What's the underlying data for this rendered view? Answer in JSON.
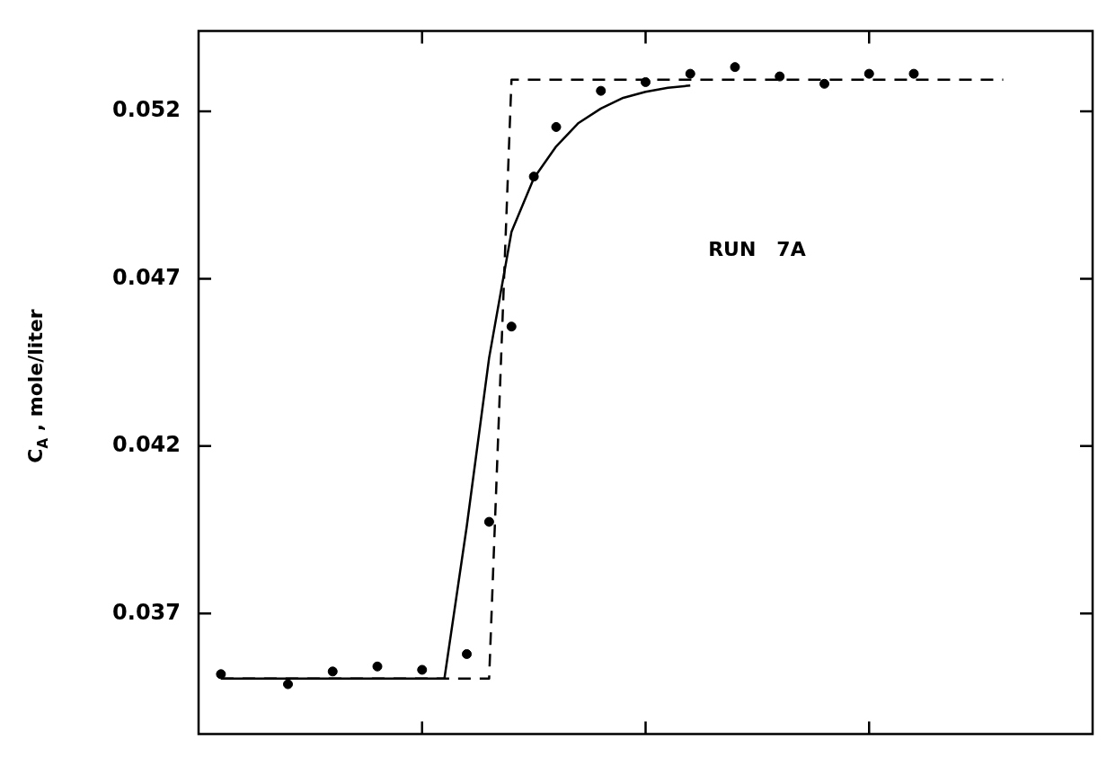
{
  "chart_data": {
    "type": "scatter",
    "ylabel": "C$_{A}$ ,  mole/liter",
    "annotations": [
      "RUN   7A"
    ],
    "categories": [
      null,
      null,
      null,
      null,
      null,
      null,
      null,
      null,
      null,
      null,
      null,
      null,
      null,
      null,
      null,
      null,
      null,
      null,
      null,
      null,
      null,
      null,
      null,
      null,
      null,
      null,
      null,
      null,
      null,
      null,
      null,
      null,
      null,
      null,
      null,
      null,
      null,
      null,
      null,
      null,
      null
    ],
    "ylim": [
      0.0334,
      0.0544
    ],
    "yticks": [
      0.037,
      0.042,
      0.047,
      0.052
    ],
    "tick_labels": "y",
    "grid": false,
    "legend": false,
    "marker": "circle",
    "series": [
      {
        "color": "#000000",
        "values": [
          null,
          0.03519,
          null,
          null,
          0.03489,
          null,
          0.03527,
          null,
          0.03542,
          null,
          0.03532,
          null,
          0.03579,
          0.03974,
          0.04557,
          0.05005,
          0.05153,
          null,
          0.05261,
          null,
          0.05287,
          null,
          0.05312,
          null,
          0.05332,
          null,
          0.05304,
          null,
          0.05282,
          null,
          0.05312,
          null,
          0.05312,
          null,
          null,
          null,
          null,
          null,
          null,
          null,
          null
        ]
      },
      {
        "type": "line",
        "color": "#000000",
        "line_style": "dashed",
        "marker": "none",
        "values": [
          null,
          0.03506,
          0.03506,
          0.03506,
          0.03506,
          0.03506,
          0.03506,
          0.03506,
          0.03506,
          0.03506,
          0.03506,
          0.03506,
          0.03506,
          0.03506,
          0.05294,
          0.05294,
          0.05294,
          0.05294,
          0.05294,
          0.05294,
          0.05294,
          0.05294,
          0.05294,
          0.05294,
          0.05294,
          0.05294,
          0.05294,
          0.05294,
          0.05294,
          0.05294,
          0.05294,
          0.05294,
          0.05294,
          0.05294,
          0.05294,
          0.05294,
          0.05294,
          null,
          null,
          null,
          null
        ]
      },
      {
        "type": "line",
        "color": "#000000",
        "line_style": "solid",
        "marker": "none",
        "values": [
          null,
          0.03506,
          0.03506,
          0.03506,
          0.03506,
          0.03506,
          0.03506,
          0.03506,
          0.03506,
          0.03506,
          0.03506,
          0.03506,
          0.03961,
          0.04464,
          0.0484,
          0.05,
          0.05095,
          0.05165,
          0.05208,
          0.0524,
          0.05258,
          0.0527,
          0.05277,
          null,
          null,
          null,
          null,
          null,
          null,
          null,
          null,
          null,
          null,
          null,
          null,
          null,
          null,
          null,
          null,
          null,
          null
        ]
      }
    ]
  }
}
